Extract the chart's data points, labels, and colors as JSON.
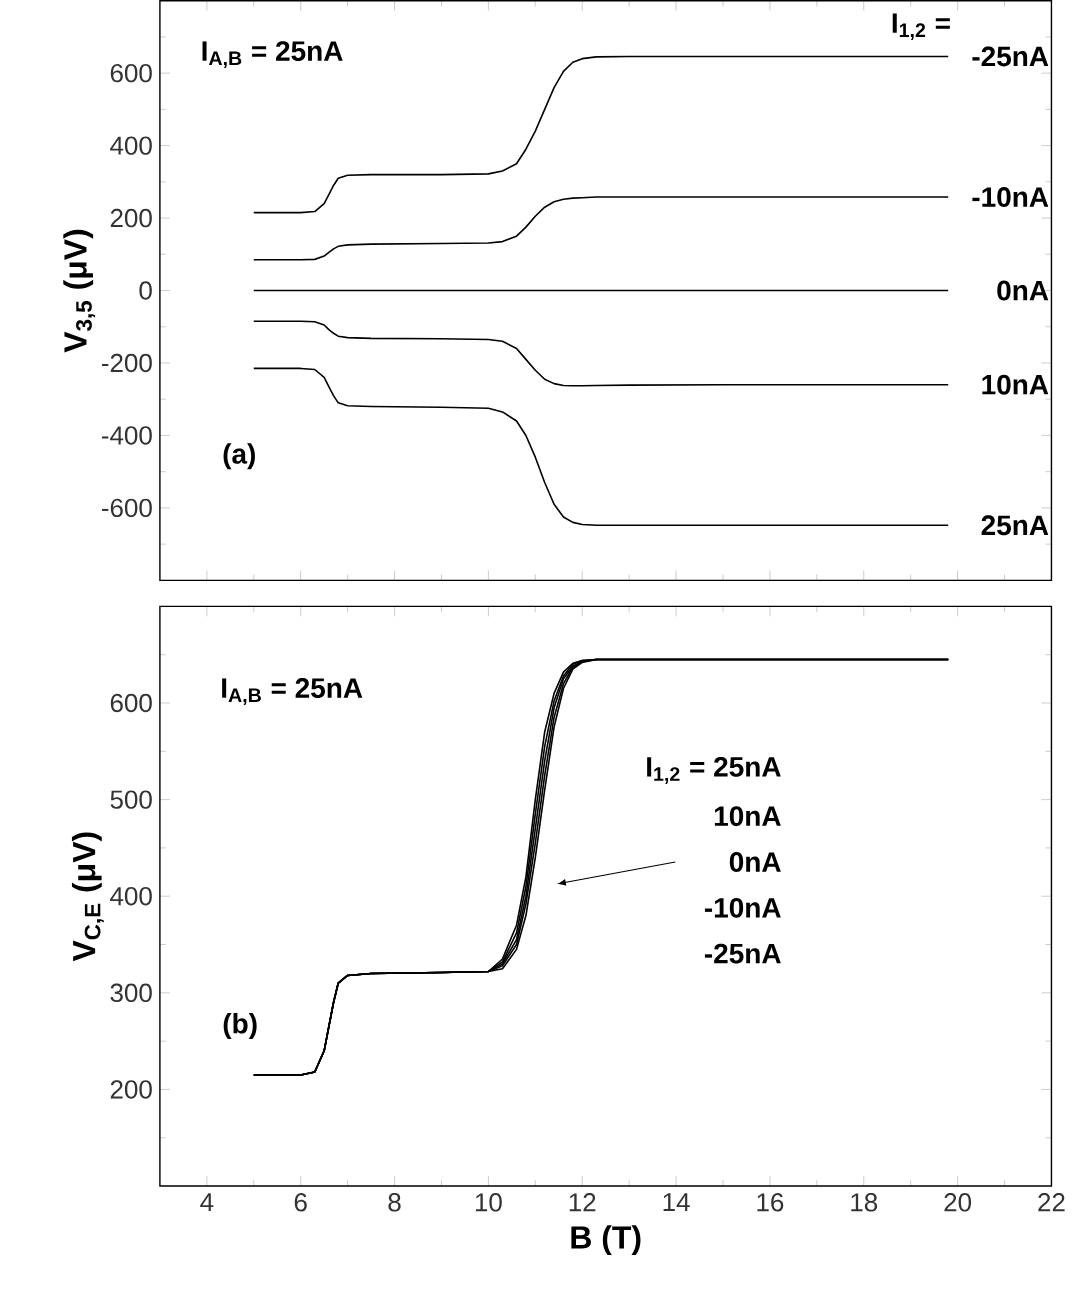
{
  "chart_data": [
    {
      "type": "line",
      "ylabel": "V$_{3,5}$ (μV)",
      "xlim": [
        3,
        22
      ],
      "ylim": [
        -800,
        800
      ],
      "xticks": [
        4,
        6,
        8,
        10,
        12,
        14,
        16,
        18,
        20,
        22,
        {
          "value": 5,
          "label": null
        },
        {
          "value": 7,
          "label": null
        },
        {
          "value": 9,
          "label": null
        },
        {
          "value": 11,
          "label": null
        },
        {
          "value": 13,
          "label": null
        },
        {
          "value": 15,
          "label": null
        },
        {
          "value": 17,
          "label": null
        },
        {
          "value": 19,
          "label": null
        },
        {
          "value": 21,
          "label": null
        }
      ],
      "yticks": [
        -600,
        -400,
        -200,
        0,
        200,
        400,
        600,
        {
          "value": -700,
          "label": null
        },
        {
          "value": -500,
          "label": null
        },
        {
          "value": -300,
          "label": null
        },
        {
          "value": -100,
          "label": null
        },
        {
          "value": 100,
          "label": null
        },
        {
          "value": 300,
          "label": null
        },
        {
          "value": 500,
          "label": null
        },
        {
          "value": 700,
          "label": null
        }
      ],
      "tick_labels": "y",
      "marker": "none",
      "line_style": "solid",
      "x": [
        5,
        6,
        6.3,
        6.5,
        6.6,
        6.7,
        6.8,
        7,
        7.5,
        9,
        10,
        10.3,
        10.6,
        10.8,
        11,
        11.2,
        11.4,
        11.6,
        11.8,
        12,
        12.3,
        13,
        15,
        19.8
      ],
      "series": [
        {
          "name": "-25nA",
          "color": "#000000",
          "values": [
            215,
            215,
            218,
            240,
            265,
            290,
            310,
            318,
            320,
            320,
            322,
            330,
            350,
            390,
            440,
            500,
            560,
            605,
            630,
            640,
            645,
            646,
            646,
            646
          ]
        },
        {
          "name": "-10nA",
          "color": "#000000",
          "values": [
            85,
            85,
            86,
            95,
            105,
            115,
            122,
            126,
            128,
            130,
            131,
            135,
            150,
            175,
            205,
            230,
            245,
            252,
            255,
            256,
            258,
            258,
            258,
            258
          ]
        },
        {
          "name": "0nA",
          "color": "#000000",
          "values": [
            0,
            0,
            0,
            0,
            0,
            0,
            0,
            0,
            0,
            0,
            0,
            0,
            0,
            0,
            0,
            0,
            0,
            0,
            0,
            0,
            0,
            0,
            0,
            0
          ]
        },
        {
          "name": "10nA",
          "color": "#000000",
          "values": [
            -85,
            -85,
            -86,
            -95,
            -108,
            -118,
            -126,
            -130,
            -132,
            -133,
            -135,
            -140,
            -160,
            -190,
            -220,
            -245,
            -257,
            -262,
            -263,
            -263,
            -262,
            -261,
            -260,
            -260
          ]
        },
        {
          "name": "25nA",
          "color": "#000000",
          "values": [
            -215,
            -215,
            -218,
            -240,
            -265,
            -290,
            -310,
            -318,
            -320,
            -322,
            -325,
            -335,
            -360,
            -400,
            -460,
            -530,
            -590,
            -625,
            -640,
            -646,
            -648,
            -648,
            -648,
            -648
          ]
        }
      ],
      "annotations": [
        "I$_{A,B}$ = 25nA",
        "I$_{1,2}$ =",
        "(a)"
      ]
    },
    {
      "type": "line",
      "xlabel": "B (T)",
      "ylabel": "V$_{C,E}$ (μV)",
      "xlim": [
        3,
        22
      ],
      "ylim": [
        100,
        700
      ],
      "xticks": [
        4,
        6,
        8,
        10,
        12,
        14,
        16,
        18,
        20,
        22,
        {
          "value": 5,
          "label": null
        },
        {
          "value": 7,
          "label": null
        },
        {
          "value": 9,
          "label": null
        },
        {
          "value": 11,
          "label": null
        },
        {
          "value": 13,
          "label": null
        },
        {
          "value": 15,
          "label": null
        },
        {
          "value": 17,
          "label": null
        },
        {
          "value": 19,
          "label": null
        },
        {
          "value": 21,
          "label": null
        }
      ],
      "yticks": [
        200,
        300,
        400,
        500,
        600,
        {
          "value": 150,
          "label": null
        },
        {
          "value": 250,
          "label": null
        },
        {
          "value": 350,
          "label": null
        },
        {
          "value": 450,
          "label": null
        },
        {
          "value": 550,
          "label": null
        },
        {
          "value": 650,
          "label": null
        }
      ],
      "marker": "none",
      "line_style": "solid",
      "x": [
        5,
        6,
        6.3,
        6.5,
        6.6,
        6.7,
        6.8,
        7,
        7.5,
        9,
        10,
        10.3,
        10.6,
        10.8,
        11,
        11.2,
        11.4,
        11.6,
        11.8,
        12,
        12.3,
        13,
        15,
        19.8
      ],
      "series": [
        {
          "color": "#000000",
          "values": [
            215,
            215,
            218,
            240,
            265,
            290,
            310,
            318,
            320,
            321,
            322,
            325,
            345,
            380,
            440,
            510,
            575,
            615,
            635,
            642,
            645,
            645,
            645,
            645
          ]
        },
        {
          "color": "#000000",
          "values": [
            215,
            215,
            218,
            240,
            265,
            290,
            310,
            318,
            320,
            321,
            322,
            328,
            350,
            392,
            455,
            525,
            585,
            620,
            637,
            643,
            645,
            645,
            645,
            645
          ]
        },
        {
          "color": "#000000",
          "values": [
            215,
            215,
            218,
            240,
            265,
            290,
            310,
            318,
            320,
            321,
            322,
            330,
            355,
            400,
            470,
            540,
            595,
            625,
            638,
            643,
            645,
            645,
            645,
            645
          ]
        },
        {
          "color": "#000000",
          "values": [
            215,
            215,
            218,
            240,
            265,
            290,
            310,
            318,
            320,
            321,
            322,
            332,
            362,
            410,
            485,
            555,
            602,
            628,
            640,
            644,
            645,
            645,
            645,
            645
          ]
        },
        {
          "color": "#000000",
          "values": [
            215,
            215,
            218,
            240,
            265,
            290,
            310,
            318,
            320,
            321,
            322,
            335,
            370,
            420,
            500,
            570,
            610,
            632,
            641,
            644,
            645,
            645,
            645,
            645
          ]
        }
      ],
      "annotations": [
        "I$_{A,B}$ = 25nA",
        "(b)",
        "I$_{1,2}$ = 25nA",
        "10nA",
        "0nA",
        "-10nA",
        "-25nA"
      ]
    }
  ]
}
